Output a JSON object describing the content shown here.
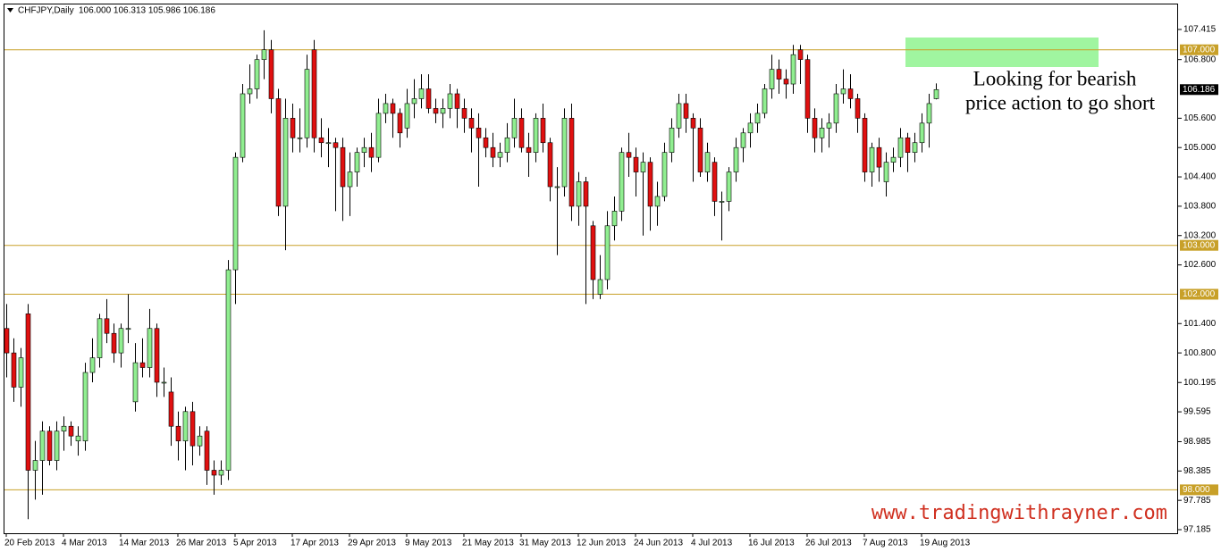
{
  "chart_data": {
    "type": "candlestick",
    "title": "CHFJPY,Daily",
    "subtitle": "106.000 106.313 105.986 106.186",
    "categories": [
      "20 Feb 2013",
      null,
      null,
      null,
      null,
      null,
      null,
      null,
      "4 Mar 2013",
      null,
      null,
      null,
      null,
      null,
      null,
      null,
      "14 Mar 2013",
      null,
      null,
      null,
      null,
      null,
      null,
      null,
      "26 Mar 2013",
      null,
      null,
      null,
      null,
      null,
      null,
      null,
      "5 Apr 2013",
      null,
      null,
      null,
      null,
      null,
      null,
      null,
      "17 Apr 2013",
      null,
      null,
      null,
      null,
      null,
      null,
      null,
      "29 Apr 2013",
      null,
      null,
      null,
      null,
      null,
      null,
      null,
      "9 May 2013",
      null,
      null,
      null,
      null,
      null,
      null,
      null,
      "21 May 2013",
      null,
      null,
      null,
      null,
      null,
      null,
      null,
      "31 May 2013",
      null,
      null,
      null,
      null,
      null,
      null,
      null,
      "12 Jun 2013",
      null,
      null,
      null,
      null,
      null,
      null,
      null,
      "24 Jun 2013",
      null,
      null,
      null,
      null,
      null,
      null,
      null,
      "4 Jul 2013",
      null,
      null,
      null,
      null,
      null,
      null,
      null,
      "16 Jul 2013",
      null,
      null,
      null,
      null,
      null,
      null,
      null,
      "26 Jul 2013",
      null,
      null,
      null,
      null,
      null,
      null,
      null,
      "7 Aug 2013",
      null,
      null,
      null,
      null,
      null,
      null,
      null,
      "19 Aug 2013",
      null,
      null
    ],
    "open": [
      101.3,
      100.8,
      100.1,
      101.6,
      98.4,
      98.6,
      99.2,
      98.6,
      99.2,
      99.3,
      99.0,
      99.0,
      100.4,
      100.7,
      101.5,
      101.2,
      100.8,
      101.3,
      99.8,
      100.6,
      100.5,
      101.3,
      100.2,
      100.0,
      99.3,
      99.0,
      99.6,
      98.9,
      99.2,
      98.4,
      98.3,
      98.4,
      102.5,
      104.8,
      106.1,
      106.2,
      106.8,
      107.0,
      106.0,
      103.8,
      105.6,
      105.2,
      105.2,
      107.0,
      105.2,
      105.1,
      105.1,
      105.0,
      104.2,
      104.5,
      104.9,
      105.0,
      104.8,
      105.7,
      105.9,
      105.7,
      105.4,
      105.9,
      106.0,
      106.2,
      105.8,
      105.7,
      105.8,
      106.1,
      105.8,
      105.6,
      105.4,
      105.2,
      105.0,
      104.8,
      104.9,
      105.2,
      105.6,
      105.0,
      104.9,
      105.6,
      105.1,
      104.2,
      104.2,
      105.6,
      103.8,
      104.3,
      103.4,
      102.0,
      102.3,
      103.4,
      103.7,
      104.9,
      104.8,
      104.5,
      104.7,
      103.8,
      104.0,
      104.9,
      105.4,
      105.9,
      105.6,
      105.4,
      104.5,
      104.7,
      103.9,
      103.9,
      104.5,
      105.0,
      105.3,
      105.5,
      105.7,
      106.2,
      106.6,
      106.4,
      106.3,
      107.0,
      106.8,
      105.6,
      105.2,
      105.4,
      105.5,
      106.1,
      106.2,
      106.0,
      105.6,
      104.5,
      105.0,
      104.3,
      104.7,
      104.8,
      105.2,
      104.9,
      105.1,
      105.5,
      106.0
    ],
    "high": [
      101.8,
      101.1,
      100.9,
      101.8,
      99.0,
      99.4,
      99.3,
      99.4,
      99.5,
      99.4,
      99.3,
      100.6,
      101.1,
      101.6,
      101.9,
      101.4,
      101.4,
      102.0,
      101.0,
      101.1,
      101.7,
      101.4,
      100.5,
      100.3,
      99.6,
      99.7,
      99.8,
      99.3,
      99.3,
      98.6,
      98.6,
      102.7,
      104.9,
      106.3,
      106.7,
      106.9,
      107.4,
      107.2,
      106.2,
      106.0,
      105.9,
      105.8,
      106.9,
      107.2,
      105.6,
      105.4,
      105.2,
      105.2,
      104.9,
      105.0,
      105.2,
      105.3,
      106.0,
      106.1,
      106.0,
      105.8,
      106.2,
      106.4,
      106.5,
      106.5,
      106.0,
      106.0,
      106.3,
      106.2,
      106.0,
      105.8,
      105.7,
      105.4,
      105.3,
      105.1,
      105.5,
      106.0,
      105.8,
      105.3,
      105.7,
      105.9,
      105.2,
      104.6,
      105.8,
      105.9,
      104.5,
      104.4,
      103.5,
      102.8,
      103.7,
      104.0,
      105.0,
      105.3,
      105.0,
      104.9,
      104.8,
      104.3,
      105.1,
      105.6,
      106.1,
      106.1,
      105.7,
      105.6,
      105.1,
      104.8,
      104.1,
      104.6,
      105.2,
      105.4,
      105.7,
      105.9,
      106.3,
      106.9,
      106.8,
      106.6,
      107.1,
      107.1,
      106.9,
      105.8,
      105.6,
      105.7,
      106.3,
      106.6,
      106.5,
      106.1,
      105.7,
      105.1,
      105.2,
      104.9,
      105.0,
      105.4,
      105.3,
      105.3,
      105.7,
      106.1,
      106.313
    ],
    "low": [
      100.3,
      99.8,
      99.7,
      97.4,
      97.8,
      97.9,
      98.5,
      98.4,
      98.8,
      98.9,
      98.7,
      98.8,
      100.2,
      100.5,
      101.0,
      100.6,
      100.5,
      101.0,
      99.6,
      100.3,
      100.3,
      99.9,
      99.9,
      98.9,
      98.6,
      98.4,
      98.5,
      98.7,
      98.1,
      97.9,
      98.1,
      98.2,
      101.8,
      104.7,
      105.9,
      106.0,
      106.4,
      105.7,
      103.6,
      102.9,
      104.9,
      104.9,
      105.0,
      104.9,
      104.8,
      104.6,
      103.7,
      103.5,
      103.6,
      104.2,
      104.6,
      104.5,
      104.7,
      105.5,
      105.2,
      105.0,
      105.2,
      105.6,
      105.8,
      105.7,
      105.5,
      105.4,
      105.6,
      105.4,
      105.3,
      104.9,
      104.2,
      104.8,
      104.6,
      104.6,
      104.7,
      105.0,
      104.9,
      104.4,
      104.7,
      104.9,
      103.9,
      102.8,
      104.0,
      103.5,
      103.4,
      101.8,
      101.9,
      101.9,
      102.1,
      103.1,
      103.5,
      104.4,
      104.0,
      103.2,
      103.3,
      103.4,
      103.9,
      104.7,
      105.2,
      105.3,
      104.3,
      104.4,
      104.3,
      103.6,
      103.1,
      103.7,
      104.3,
      104.7,
      105.0,
      105.3,
      105.6,
      106.0,
      106.1,
      106.0,
      106.1,
      106.3,
      105.3,
      104.9,
      104.9,
      105.0,
      105.3,
      105.9,
      105.8,
      105.3,
      104.3,
      104.2,
      104.3,
      104.0,
      104.5,
      104.6,
      104.5,
      104.7,
      104.9,
      105.0,
      105.986
    ],
    "close": [
      100.8,
      100.1,
      100.7,
      98.4,
      98.6,
      99.2,
      98.6,
      99.2,
      99.3,
      99.1,
      99.1,
      100.4,
      100.7,
      101.5,
      101.2,
      100.8,
      101.3,
      101.3,
      100.6,
      100.5,
      101.3,
      100.2,
      100.2,
      99.3,
      99.0,
      99.6,
      98.9,
      99.1,
      98.4,
      98.3,
      98.4,
      102.5,
      104.8,
      106.1,
      106.2,
      106.8,
      107.0,
      106.0,
      103.8,
      105.6,
      105.2,
      105.2,
      106.6,
      105.2,
      105.1,
      105.1,
      105.0,
      104.2,
      104.5,
      104.9,
      105.0,
      104.8,
      105.7,
      105.9,
      105.7,
      105.3,
      105.9,
      106.0,
      106.2,
      105.8,
      105.7,
      105.8,
      106.1,
      105.8,
      105.6,
      105.4,
      105.2,
      105.0,
      104.8,
      104.9,
      105.2,
      105.6,
      105.0,
      104.9,
      105.6,
      105.1,
      104.2,
      104.2,
      105.6,
      103.8,
      104.3,
      103.8,
      102.3,
      102.3,
      103.4,
      103.7,
      104.9,
      104.8,
      104.5,
      104.7,
      103.8,
      104.0,
      104.9,
      105.4,
      105.9,
      105.6,
      105.4,
      104.5,
      104.9,
      103.9,
      103.9,
      104.5,
      105.0,
      105.3,
      105.5,
      105.7,
      106.2,
      106.6,
      106.4,
      106.3,
      106.9,
      106.8,
      105.6,
      105.2,
      105.4,
      105.5,
      106.1,
      106.2,
      106.0,
      105.6,
      104.5,
      105.0,
      104.6,
      104.7,
      104.8,
      105.2,
      104.9,
      105.1,
      105.5,
      105.9,
      106.186
    ],
    "up_color": "#90ee90",
    "down_color": "#e01010",
    "wick_color": "#000000",
    "ylim": [
      97.112,
      107.945
    ],
    "yticks": [
      107.415,
      {
        "value": 106.8,
        "label": "106.800"
      },
      {
        "value": 105.6,
        "label": "105.600"
      },
      {
        "value": 105,
        "label": "105.000"
      },
      {
        "value": 104.4,
        "label": "104.400"
      },
      {
        "value": 103.8,
        "label": "103.800"
      },
      {
        "value": 103.2,
        "label": "103.200"
      },
      {
        "value": 102.6,
        "label": "102.600"
      },
      {
        "value": 101.4,
        "label": "101.400"
      },
      {
        "value": 100.8,
        "label": "100.800"
      },
      100.195,
      99.595,
      98.985,
      98.385,
      97.785,
      97.185
    ],
    "levels": [
      {
        "value": 107,
        "label": "107.000"
      },
      {
        "value": 103,
        "label": "103.000"
      },
      {
        "value": 102,
        "label": "102.000"
      },
      {
        "value": 98,
        "label": "98.000"
      }
    ],
    "level_color": "#c8a028",
    "annotation": [
      "Looking for bearish",
      "price action to go short"
    ],
    "watermark": "www.tradingwithrayner.com"
  }
}
